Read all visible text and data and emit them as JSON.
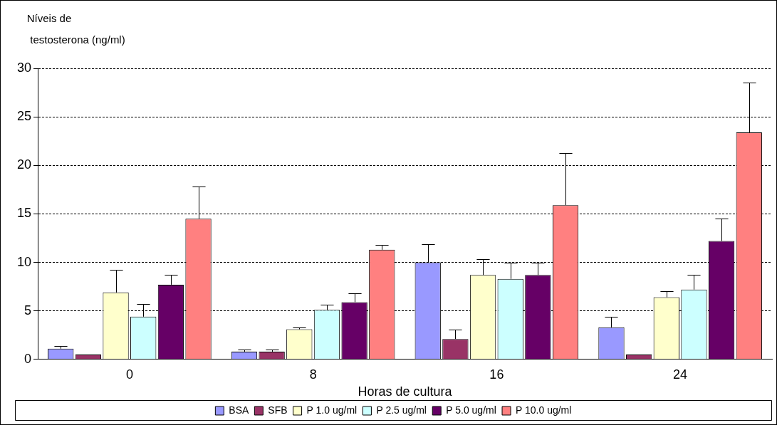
{
  "chart_data": {
    "type": "bar",
    "ylabel": "Níveis de\ntestosterona (ng/ml)",
    "xlabel": "Horas de cultura",
    "categories": [
      "0",
      "8",
      "16",
      "24"
    ],
    "ylim": [
      0,
      30
    ],
    "yticks": [
      0,
      5,
      10,
      15,
      20,
      25,
      30
    ],
    "grid": "y",
    "legend": "bottom",
    "series": [
      {
        "name": "BSA",
        "color": "#9999ff",
        "values": [
          1.1,
          0.8,
          10.0,
          3.3
        ],
        "errors": [
          [
            1.1,
            1.4
          ],
          [
            0.8,
            1.0
          ],
          [
            10.0,
            11.9
          ],
          [
            3.3,
            4.4
          ]
        ]
      },
      {
        "name": "SFB",
        "color": "#993366",
        "values": [
          0.5,
          0.8,
          2.1,
          0.5
        ],
        "errors": [
          null,
          [
            0.8,
            1.0
          ],
          [
            2.1,
            3.1
          ],
          null
        ]
      },
      {
        "name": "P 1.0 ug/ml",
        "color": "#ffffcc",
        "values": [
          6.9,
          3.1,
          8.7,
          6.4
        ],
        "errors": [
          [
            6.9,
            9.2
          ],
          [
            3.1,
            3.3
          ],
          [
            8.7,
            10.3
          ],
          [
            6.4,
            7.0
          ]
        ]
      },
      {
        "name": "P 2.5 ug/ml",
        "color": "#ccffff",
        "values": [
          4.4,
          5.1,
          8.3,
          7.2
        ],
        "errors": [
          [
            4.4,
            5.7
          ],
          [
            5.1,
            5.6
          ],
          [
            8.3,
            10.0
          ],
          [
            7.2,
            8.7
          ]
        ]
      },
      {
        "name": "P 5.0 ug/ml",
        "color": "#660066",
        "values": [
          7.7,
          5.9,
          8.7,
          12.2
        ],
        "errors": [
          [
            7.7,
            8.7
          ],
          [
            5.9,
            6.8
          ],
          [
            8.7,
            10.0
          ],
          [
            12.2,
            14.5
          ]
        ]
      },
      {
        "name": "P 10.0 ug/ml",
        "color": "#ff8080",
        "values": [
          14.5,
          11.3,
          15.9,
          23.4
        ],
        "errors": [
          [
            14.5,
            17.8
          ],
          [
            11.3,
            11.8
          ],
          [
            15.9,
            21.3
          ],
          [
            23.4,
            28.5
          ]
        ]
      }
    ]
  }
}
